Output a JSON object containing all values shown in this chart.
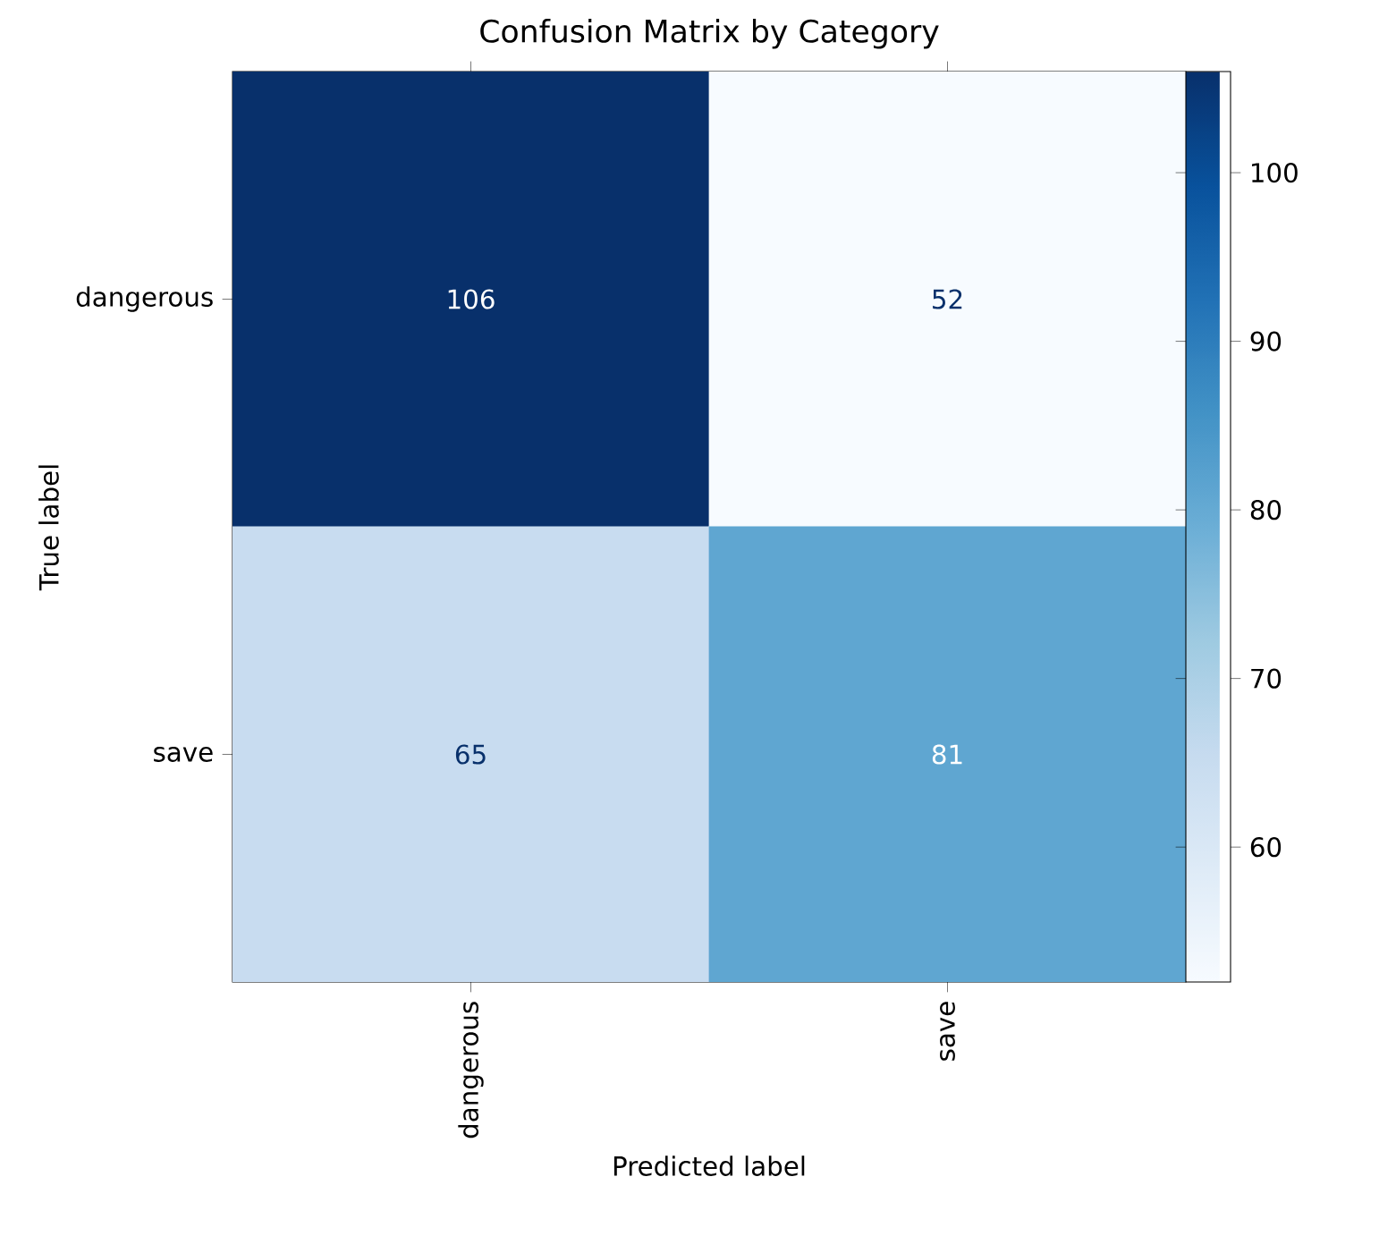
{
  "chart_data": {
    "type": "heatmap",
    "title": "Confusion Matrix by Category",
    "xlabel": "Predicted label",
    "ylabel": "True label",
    "categories": [
      "dangerous",
      "save"
    ],
    "y_categories": [
      "dangerous",
      "save"
    ],
    "cells": [
      [
        106,
        52
      ],
      [
        65,
        81
      ]
    ],
    "clim": [
      52,
      106
    ],
    "cticks": [
      60,
      70,
      80,
      90,
      100
    ],
    "data_labels": true
  }
}
